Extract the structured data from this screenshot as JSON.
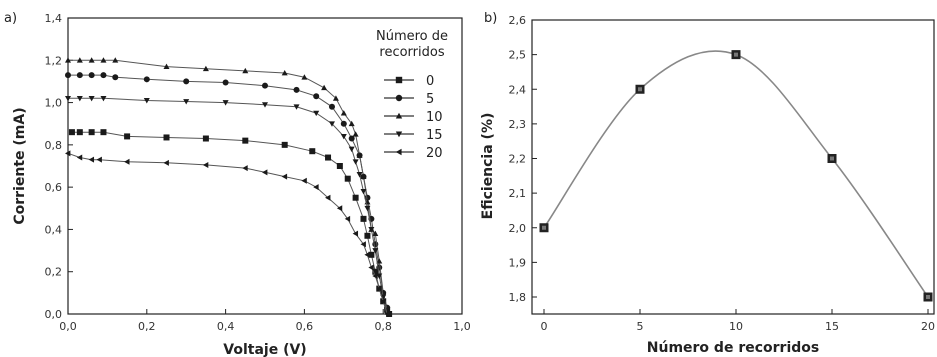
{
  "chart_data": [
    {
      "type": "line",
      "panel_label": "a)",
      "xlabel": "Voltaje (V)",
      "ylabel": "Corriente (mA)",
      "xlim": [
        0,
        1.0
      ],
      "ylim": [
        0,
        1.4
      ],
      "xticks": [
        "0,0",
        "0,2",
        "0,4",
        "0,6",
        "0,8",
        "1,0"
      ],
      "yticks": [
        "0,0",
        "0,2",
        "0,4",
        "0,6",
        "0,8",
        "1,0",
        "1,2",
        "1,4"
      ],
      "legend_title_line1": "Número de",
      "legend_title_line2": "recorridos",
      "legend_placement": "top-right",
      "grid": false,
      "series": [
        {
          "name": "0",
          "marker": "square",
          "x": [
            0.01,
            0.03,
            0.06,
            0.09,
            0.15,
            0.25,
            0.35,
            0.45,
            0.55,
            0.62,
            0.66,
            0.69,
            0.71,
            0.73,
            0.75,
            0.76,
            0.77,
            0.78,
            0.79,
            0.8,
            0.81,
            0.815
          ],
          "y": [
            0.86,
            0.86,
            0.86,
            0.86,
            0.84,
            0.835,
            0.83,
            0.82,
            0.8,
            0.77,
            0.74,
            0.7,
            0.64,
            0.55,
            0.45,
            0.37,
            0.28,
            0.2,
            0.12,
            0.06,
            0.02,
            0.0
          ]
        },
        {
          "name": "5",
          "marker": "circle",
          "x": [
            0.0,
            0.03,
            0.06,
            0.09,
            0.12,
            0.2,
            0.3,
            0.4,
            0.5,
            0.58,
            0.63,
            0.67,
            0.7,
            0.72,
            0.74,
            0.75,
            0.76,
            0.77,
            0.78,
            0.79,
            0.8,
            0.81,
            0.815
          ],
          "y": [
            1.13,
            1.13,
            1.13,
            1.13,
            1.12,
            1.11,
            1.1,
            1.095,
            1.08,
            1.06,
            1.03,
            0.98,
            0.9,
            0.83,
            0.75,
            0.65,
            0.55,
            0.45,
            0.33,
            0.22,
            0.1,
            0.03,
            0.0
          ]
        },
        {
          "name": "10",
          "marker": "triangle-up",
          "x": [
            0.0,
            0.03,
            0.06,
            0.09,
            0.12,
            0.25,
            0.35,
            0.45,
            0.55,
            0.6,
            0.65,
            0.68,
            0.7,
            0.72,
            0.73,
            0.74,
            0.75,
            0.76,
            0.77,
            0.78,
            0.79,
            0.8,
            0.81
          ],
          "y": [
            1.2,
            1.2,
            1.2,
            1.2,
            1.2,
            1.17,
            1.16,
            1.15,
            1.14,
            1.12,
            1.07,
            1.02,
            0.95,
            0.9,
            0.85,
            0.75,
            0.65,
            0.53,
            0.4,
            0.38,
            0.25,
            0.1,
            0.02
          ]
        },
        {
          "name": "15",
          "marker": "triangle-down",
          "x": [
            0.0,
            0.03,
            0.06,
            0.09,
            0.2,
            0.3,
            0.4,
            0.5,
            0.58,
            0.63,
            0.67,
            0.7,
            0.72,
            0.73,
            0.74,
            0.75,
            0.76,
            0.77,
            0.78,
            0.79,
            0.8,
            0.81
          ],
          "y": [
            1.02,
            1.02,
            1.02,
            1.02,
            1.01,
            1.005,
            1.0,
            0.99,
            0.98,
            0.95,
            0.9,
            0.84,
            0.78,
            0.72,
            0.66,
            0.58,
            0.5,
            0.4,
            0.3,
            0.18,
            0.08,
            0.0
          ]
        },
        {
          "name": "20",
          "marker": "triangle-left",
          "x": [
            0.0,
            0.03,
            0.06,
            0.08,
            0.15,
            0.25,
            0.35,
            0.45,
            0.5,
            0.55,
            0.6,
            0.63,
            0.66,
            0.69,
            0.71,
            0.73,
            0.75,
            0.76,
            0.77,
            0.78,
            0.79,
            0.8,
            0.81
          ],
          "y": [
            0.76,
            0.74,
            0.73,
            0.73,
            0.72,
            0.715,
            0.705,
            0.69,
            0.67,
            0.65,
            0.63,
            0.6,
            0.55,
            0.5,
            0.45,
            0.38,
            0.33,
            0.28,
            0.22,
            0.18,
            0.12,
            0.06,
            0.0
          ]
        }
      ]
    },
    {
      "type": "line",
      "panel_label": "b)",
      "xlabel": "Número de recorridos",
      "ylabel": "Eficiencia (%)",
      "xlim": [
        0,
        20
      ],
      "ylim": [
        1.8,
        2.6
      ],
      "xticks": [
        "0",
        "5",
        "10",
        "15",
        "20"
      ],
      "yticks": [
        "1,8",
        "1,9",
        "2,0",
        "2,1",
        "2,2",
        "2,3",
        "2,4",
        "2,5",
        "2,6"
      ],
      "grid": false,
      "series": [
        {
          "marker": "square",
          "x": [
            0,
            5,
            10,
            15,
            20
          ],
          "y": [
            2.0,
            2.4,
            2.5,
            2.2,
            1.8
          ]
        }
      ]
    }
  ]
}
